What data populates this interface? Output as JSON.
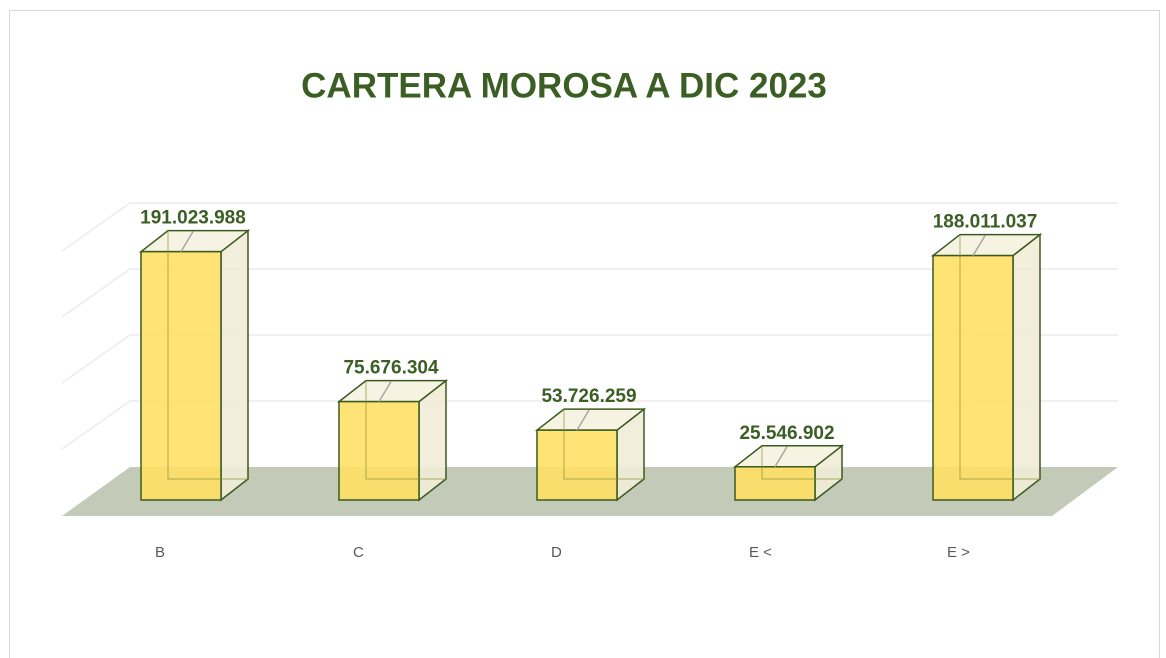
{
  "chart_data": {
    "type": "bar3d",
    "title": "CARTERA MOROSA A DIC 2023",
    "categories": [
      "B",
      "C",
      "D",
      "E <",
      "E >"
    ],
    "values": [
      191023988,
      75676304,
      53726259,
      25546902,
      188011037
    ],
    "value_labels": [
      "191.023.988",
      "75.676.304",
      "53.726.259",
      "25.546.902",
      "188.011.037"
    ],
    "color": "#ffe066",
    "ylim": [
      0,
      200000000
    ],
    "yticks": [
      0,
      50000000,
      100000000,
      150000000,
      200000000
    ],
    "grid": true
  }
}
